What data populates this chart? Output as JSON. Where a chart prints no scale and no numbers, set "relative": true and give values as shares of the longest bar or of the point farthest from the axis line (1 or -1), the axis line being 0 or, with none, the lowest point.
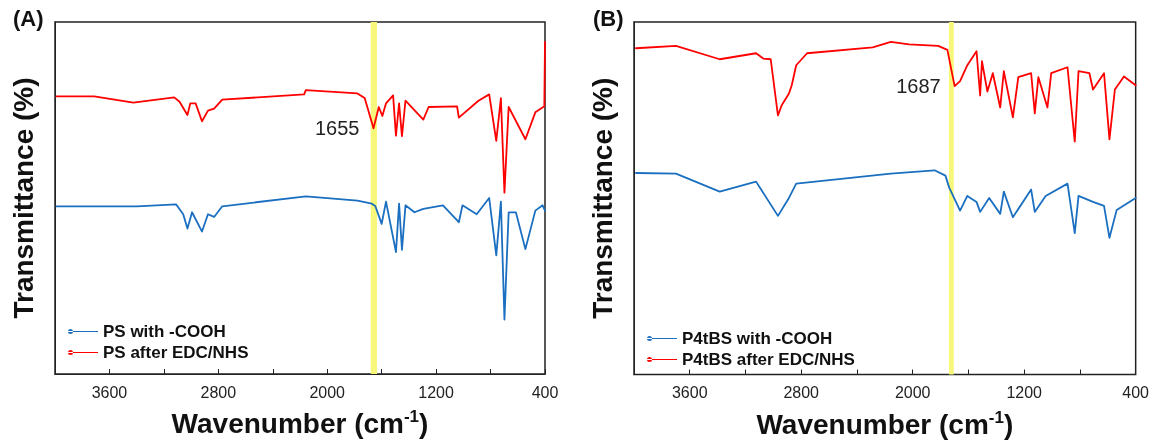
{
  "chart_data": [
    {
      "type": "line",
      "title": "(A)",
      "xlabel": "Wavenumber (cm$^{-1}$)",
      "ylabel": "Transmittance (%)",
      "relative": true,
      "xlim": [
        4000,
        400
      ],
      "xticks": [
        3600,
        {
          "value": 3200,
          "label": null
        },
        2800,
        {
          "value": 2400,
          "label": null
        },
        2000,
        {
          "value": 1600,
          "label": null
        },
        1200,
        {
          "value": 800,
          "label": null
        },
        400
      ],
      "legend": "bottom left",
      "marker": "none",
      "line_style": "solid",
      "grid": false,
      "bands": [
        {
          "axis": "x",
          "from": 1680,
          "to": 1634,
          "color": "#f7f77a"
        }
      ],
      "annotations": [
        {
          "text": "1655",
          "x": 1660,
          "y": 0.74
        }
      ],
      "series": [
        {
          "name": "PS with -COOH",
          "color": "#1a6fc0",
          "x": [
            3990,
            3398,
            3111,
            3058,
            3027,
            2993,
            2920,
            2876,
            2831,
            2771,
            2157,
            1778,
            1673,
            1647,
            1600,
            1568,
            1495,
            1472,
            1451,
            1425,
            1359,
            1294,
            1150,
            1033,
            1006,
            902,
            810,
            758,
            724,
            698,
            667,
            614,
            544,
            471,
            418,
            400
          ],
          "values": [
            0.505,
            0.505,
            0.511,
            0.481,
            0.438,
            0.487,
            0.429,
            0.481,
            0.473,
            0.505,
            0.535,
            0.522,
            0.513,
            0.506,
            0.452,
            0.519,
            0.367,
            0.513,
            0.374,
            0.508,
            0.487,
            0.497,
            0.508,
            0.457,
            0.508,
            0.481,
            0.53,
            0.357,
            0.519,
            0.164,
            0.487,
            0.487,
            0.376,
            0.492,
            0.508,
            0.492
          ]
        },
        {
          "name": "PS after EDC/NHS",
          "color": "#ff0000",
          "x": [
            3990,
            3712,
            3424,
            3124,
            3085,
            3027,
            3006,
            2967,
            2920,
            2876,
            2831,
            2771,
            2170,
            2157,
            1778,
            1725,
            1660,
            1621,
            1595,
            1568,
            1516,
            1495,
            1472,
            1451,
            1425,
            1294,
            1255,
            1046,
            1033,
            889,
            810,
            758,
            724,
            698,
            667,
            544,
            471,
            405,
            400
          ],
          "values": [
            0.836,
            0.836,
            0.817,
            0.833,
            0.82,
            0.78,
            0.815,
            0.815,
            0.761,
            0.793,
            0.799,
            0.826,
            0.842,
            0.855,
            0.845,
            0.831,
            0.74,
            0.804,
            0.777,
            0.815,
            0.839,
            0.718,
            0.815,
            0.716,
            0.823,
            0.766,
            0.804,
            0.806,
            0.772,
            0.823,
            0.842,
            0.702,
            0.831,
            0.546,
            0.804,
            0.707,
            0.788,
            0.806,
            1
          ]
        }
      ]
    },
    {
      "type": "line",
      "title": "(B)",
      "xlabel": "Wavenumber (cm$^{-1}$)",
      "ylabel": "Transmittance (%)",
      "relative": true,
      "xlim": [
        4000,
        400
      ],
      "xticks": [
        3600,
        {
          "value": 3200,
          "label": null
        },
        2800,
        {
          "value": 2400,
          "label": null
        },
        2000,
        {
          "value": 1600,
          "label": null
        },
        1200,
        {
          "value": 800,
          "label": null
        },
        400
      ],
      "legend": "bottom left",
      "marker": "none",
      "line_style": "solid",
      "grid": false,
      "bands": [
        {
          "axis": "x",
          "from": 1740,
          "to": 1705,
          "color": "#f7f77a"
        }
      ],
      "annotations": [
        {
          "text": "1687",
          "x": 1699,
          "y": 0.867
        }
      ],
      "series": [
        {
          "name": "P4tBS with -COOH",
          "color": "#1a6fc0",
          "x": [
            3986,
            3699,
            3385,
            3124,
            2967,
            2888,
            2836,
            2157,
            1843,
            1765,
            1738,
            1660,
            1608,
            1542,
            1516,
            1451,
            1372,
            1346,
            1281,
            1150,
            1124,
            1046,
            889,
            837,
            810,
            706,
            627,
            588,
            536,
            400
          ],
          "values": [
            0.606,
            0.604,
            0.55,
            0.58,
            0.477,
            0.531,
            0.574,
            0.604,
            0.614,
            0.598,
            0.562,
            0.493,
            0.537,
            0.519,
            0.489,
            0.531,
            0.483,
            0.55,
            0.473,
            0.556,
            0.489,
            0.537,
            0.574,
            0.425,
            0.537,
            0.519,
            0.507,
            0.411,
            0.495,
            0.531
          ]
        },
        {
          "name": "P4tBS after EDC/NHS",
          "color": "#ff0000",
          "x": [
            3986,
            3699,
            3385,
            3124,
            3072,
            3019,
            2967,
            2941,
            2888,
            2868,
            2836,
            2758,
            2287,
            2157,
            2026,
            1817,
            1751,
            1699,
            1660,
            1608,
            1542,
            1516,
            1503,
            1464,
            1425,
            1372,
            1346,
            1281,
            1242,
            1150,
            1124,
            1098,
            1033,
            1006,
            889,
            837,
            810,
            732,
            706,
            627,
            588,
            549,
            484,
            400
          ],
          "values": [
            0.981,
            0.988,
            0.948,
            0.966,
            0.95,
            0.948,
            0.779,
            0.809,
            0.845,
            0.87,
            0.93,
            0.966,
            0.984,
            1,
            0.993,
            0.988,
            0.976,
            0.867,
            0.882,
            0.93,
            0.972,
            0.839,
            0.942,
            0.851,
            0.906,
            0.803,
            0.912,
            0.773,
            0.894,
            0.906,
            0.785,
            0.894,
            0.803,
            0.906,
            0.924,
            0.7,
            0.912,
            0.906,
            0.857,
            0.906,
            0.707,
            0.857,
            0.896,
            0.87
          ]
        }
      ]
    }
  ]
}
